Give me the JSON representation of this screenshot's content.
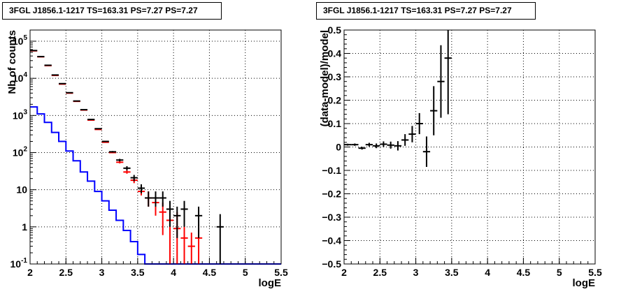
{
  "chart_data": [
    {
      "type": "line",
      "title": "3FGL J1856.1-1217 TS=163.31 PS=7.27 PS=7.27",
      "xlabel": "logE",
      "ylabel": "Nb of counts",
      "xlim": [
        2,
        5.5
      ],
      "ylim": [
        0.1,
        200000
      ],
      "yscale": "log",
      "grid": true,
      "x_ticks": [
        "2",
        "2.5",
        "3",
        "3.5",
        "4",
        "4.5",
        "5",
        "5.5"
      ],
      "y_ticks": [
        "10^-1",
        "1",
        "10",
        "10^2",
        "10^3",
        "10^4",
        "10^5"
      ],
      "bin_edges": [
        2.0,
        2.1,
        2.2,
        2.3,
        2.4,
        2.5,
        2.6,
        2.7,
        2.8,
        2.9,
        3.0,
        3.1,
        3.2,
        3.3,
        3.4,
        3.5,
        3.6,
        3.7,
        3.8,
        3.9,
        4.0,
        4.1,
        4.2,
        4.3,
        4.4,
        4.5,
        4.6,
        4.7,
        4.8,
        4.9,
        5.0,
        5.1,
        5.2,
        5.3,
        5.4,
        5.5
      ],
      "series": [
        {
          "style": "step",
          "color": "#0000ff",
          "values": [
            1700,
            1100,
            650,
            350,
            200,
            110,
            60,
            30,
            17,
            9,
            5,
            2.8,
            1.5,
            0.8,
            0.4,
            0.18,
            0.1,
            0.1,
            0.1,
            0.1,
            0.1,
            0.1,
            0.1,
            0.1,
            0.1,
            0.1,
            0.1,
            0.1,
            0.1,
            0.1,
            0.1,
            0.1,
            0.1,
            0.1,
            0.1
          ]
        },
        {
          "style": "errorbar",
          "color": "#ff0000",
          "x": [
            2.05,
            2.15,
            2.25,
            2.35,
            2.45,
            2.55,
            2.65,
            2.75,
            2.85,
            2.95,
            3.05,
            3.15,
            3.25,
            3.35,
            3.45,
            3.55,
            3.65,
            3.75,
            3.85,
            3.95,
            4.05,
            4.15,
            4.25,
            4.35
          ],
          "y": [
            55000,
            38000,
            22000,
            12000,
            7000,
            4000,
            2400,
            1400,
            750,
            420,
            190,
            100,
            55,
            30,
            18,
            9,
            6,
            4.5,
            2.5,
            1.5,
            0.9,
            0.5,
            0.3,
            0.5
          ],
          "ylo": [
            54000,
            37500,
            21800,
            11900,
            6900,
            3950,
            2370,
            1380,
            740,
            415,
            185,
            97,
            51,
            27,
            15,
            7,
            3.5,
            2,
            0.6,
            0.1,
            0.1,
            0.1,
            0.1,
            0.1
          ],
          "yhi": [
            56000,
            38500,
            22200,
            12100,
            7100,
            4050,
            2430,
            1420,
            760,
            425,
            195,
            103,
            59,
            33,
            21,
            11,
            9,
            7,
            4.5,
            2.5,
            2.5,
            1,
            0.7,
            1.2
          ]
        },
        {
          "style": "errorbar",
          "color": "#000000",
          "x": [
            2.05,
            2.15,
            2.25,
            2.35,
            2.45,
            2.55,
            2.65,
            2.75,
            2.85,
            2.95,
            3.05,
            3.15,
            3.25,
            3.35,
            3.45,
            3.55,
            3.65,
            3.75,
            3.85,
            3.95,
            4.05,
            4.15,
            4.35,
            4.65
          ],
          "y": [
            56000,
            38500,
            22500,
            12300,
            7200,
            4100,
            2450,
            1430,
            780,
            440,
            200,
            105,
            63,
            38,
            21,
            11,
            6,
            6,
            6,
            3,
            2,
            3,
            2,
            1
          ],
          "ylo": [
            55500,
            38000,
            22300,
            12200,
            7100,
            4050,
            2420,
            1410,
            770,
            430,
            195,
            100,
            58,
            33,
            17,
            8,
            3.5,
            3.5,
            3.5,
            1,
            0.5,
            1,
            0.5,
            0.1
          ],
          "yhi": [
            56500,
            39000,
            22700,
            12400,
            7300,
            4150,
            2480,
            1450,
            790,
            450,
            205,
            110,
            68,
            43,
            25,
            14,
            9,
            9,
            9,
            5,
            3.5,
            5,
            3.5,
            2.2
          ]
        }
      ]
    },
    {
      "type": "scatter",
      "title": "3FGL J1856.1-1217 TS=163.31 PS=7.27 PS=7.27",
      "xlabel": "logE",
      "ylabel": "(data-model)/model",
      "xlim": [
        2,
        5.5
      ],
      "ylim": [
        -0.5,
        0.5
      ],
      "grid": true,
      "x_ticks": [
        "2",
        "2.5",
        "3",
        "3.5",
        "4",
        "4.5",
        "5",
        "5.5"
      ],
      "y_ticks": [
        "-0.5",
        "-0.4",
        "-0.3",
        "-0.2",
        "-0.1",
        "0",
        "0.1",
        "0.2",
        "0.3",
        "0.4",
        "0.5"
      ],
      "series": [
        {
          "style": "errorbar",
          "color": "#000000",
          "x": [
            2.05,
            2.15,
            2.25,
            2.35,
            2.45,
            2.55,
            2.65,
            2.75,
            2.85,
            2.95,
            3.05,
            3.15,
            3.25,
            3.35,
            3.45
          ],
          "y": [
            0.01,
            0.01,
            -0.005,
            0.01,
            0.005,
            0.012,
            0.008,
            0.005,
            0.03,
            0.055,
            0.1,
            -0.02,
            0.155,
            0.28,
            0.38
          ],
          "err": [
            0.004,
            0.005,
            0.006,
            0.008,
            0.01,
            0.012,
            0.015,
            0.02,
            0.025,
            0.035,
            0.045,
            0.065,
            0.105,
            0.155,
            0.24
          ]
        }
      ]
    }
  ]
}
